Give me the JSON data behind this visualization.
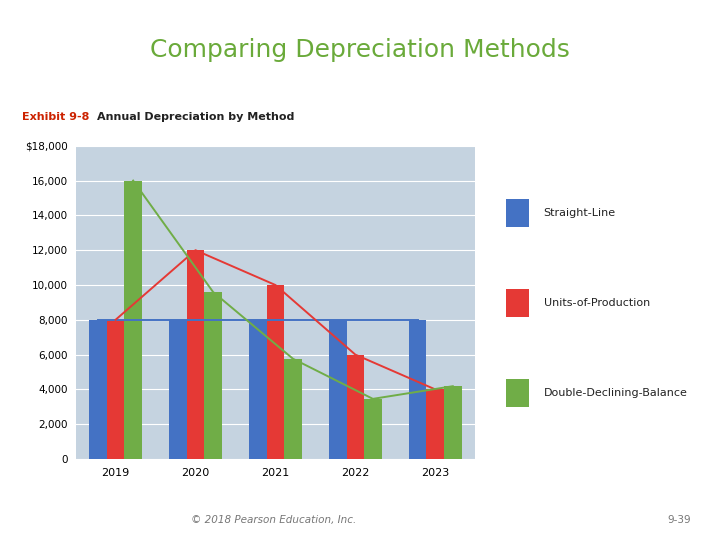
{
  "title": "Comparing Depreciation Methods",
  "title_color": "#6aaa3a",
  "title_fontsize": 18,
  "exhibit_label": "Exhibit 9-8",
  "chart_title": "Annual Depreciation by Method",
  "footer_left": "© 2018 Pearson Education, Inc.",
  "footer_right": "9-39",
  "years": [
    2019,
    2020,
    2021,
    2022,
    2023
  ],
  "straight_line": [
    8000,
    8000,
    8000,
    8000,
    8000
  ],
  "units_of_production": [
    8000,
    12000,
    10000,
    6000,
    4000
  ],
  "double_declining": [
    16000,
    9600,
    5760,
    3456,
    4184
  ],
  "colors": {
    "straight_line": "#4472c4",
    "units_of_production": "#e53935",
    "double_declining": "#70ad47",
    "line_sl": "#4472c4",
    "line_units": "#e53935",
    "line_ddb": "#70ad47",
    "plot_bg": "#c5d3e0",
    "outer_bg": "#fdf9e8",
    "page_bg": "#ffffff"
  },
  "ylim": [
    0,
    18000
  ],
  "ytick_step": 2000,
  "legend_labels": [
    "Straight-Line",
    "Units-of-Production",
    "Double-Declining-Balance"
  ],
  "exhibit_color": "#cc2200",
  "chart_title_color": "#222222"
}
